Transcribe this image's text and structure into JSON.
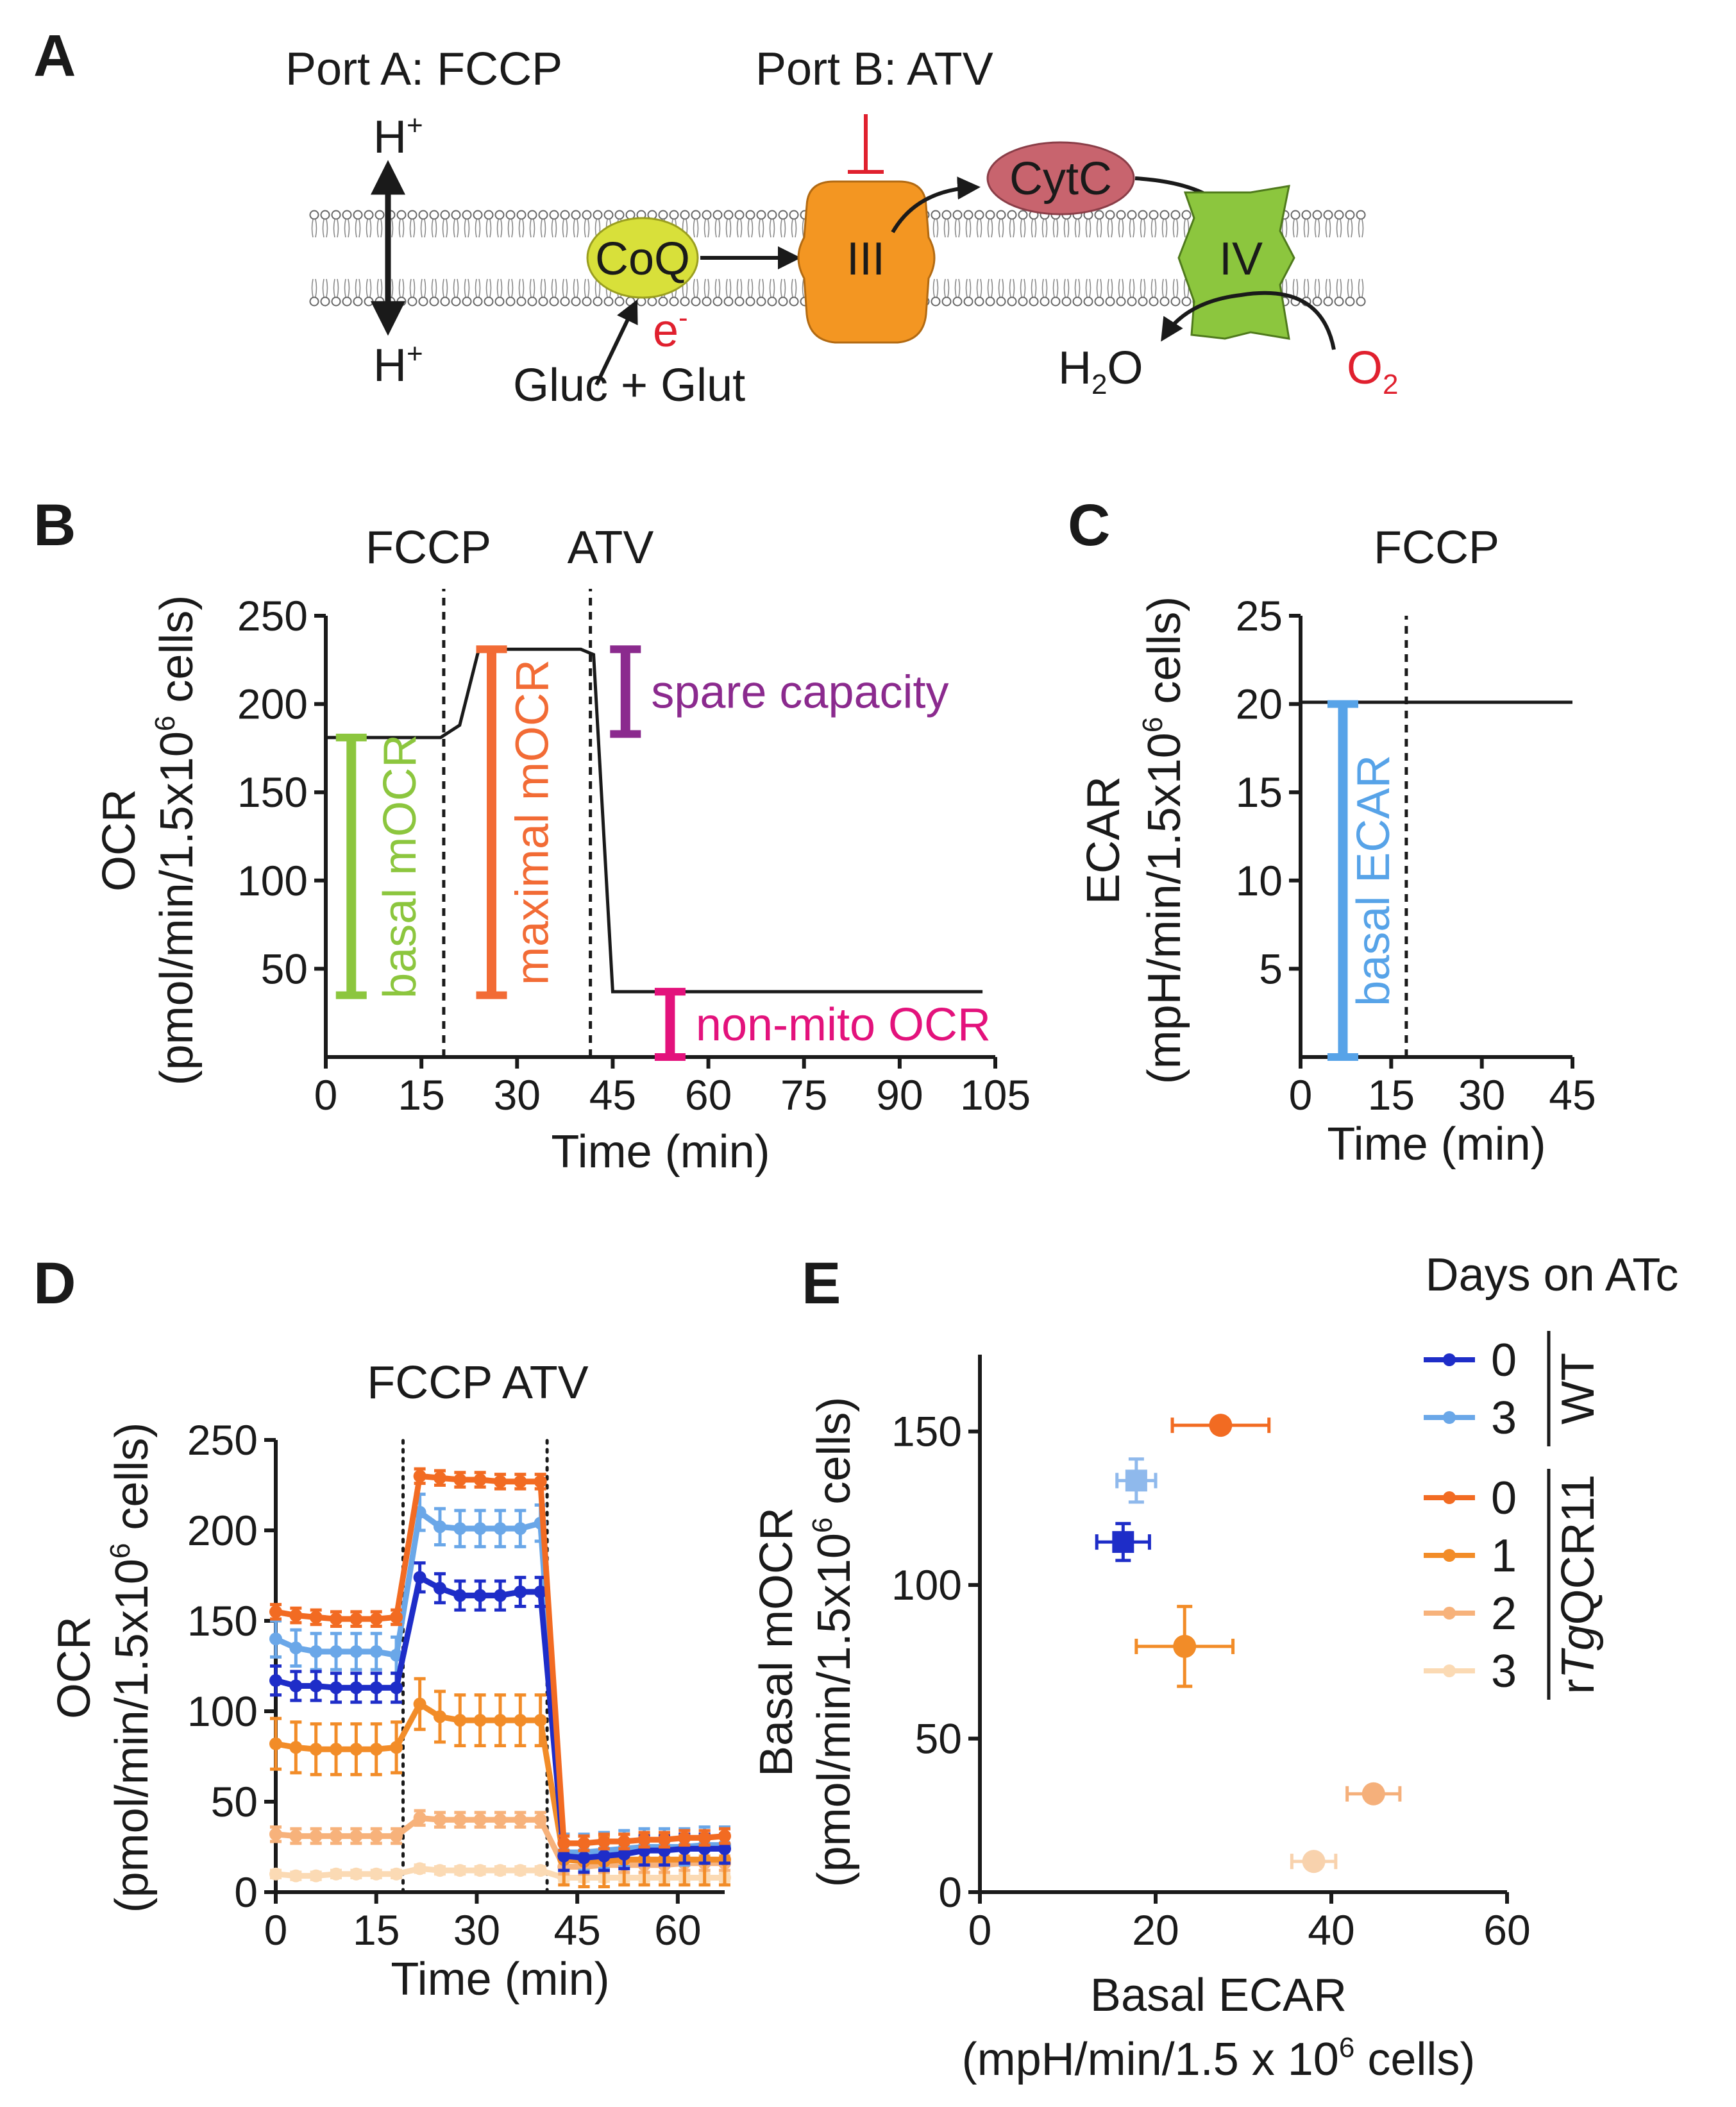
{
  "panel_labels": {
    "a": "A",
    "b": "B",
    "c": "C",
    "d": "D",
    "e": "E"
  },
  "panel_a": {
    "port_a": "Port A: FCCP",
    "port_b": "Port B: ATV",
    "h_top": "H",
    "h_bottom": "H",
    "h_sup": "+",
    "coq": "CoQ",
    "complex_iii": "III",
    "cytc": "CytC",
    "complex_iv": "IV",
    "electron": "e",
    "electron_sup": "-",
    "substrates": "Gluc + Glut",
    "water_h": "H",
    "water_sub": "2",
    "water_o": "O",
    "oxygen": "O",
    "oxygen_sub": "2",
    "colors": {
      "coq": "#d8e03a",
      "complex_iii": "#f39622",
      "cytc": "#c8646e",
      "complex_iv": "#8cc63e",
      "inhibitor": "#e0202e",
      "electron": "#e0202e"
    }
  },
  "chart_data": [
    {
      "panel": "B",
      "type": "line",
      "top_labels": [
        "FCCP",
        "ATV"
      ],
      "xlabel": "Time (min)",
      "ylabel_line1": "OCR",
      "ylabel_line2": "(pmol/min/1.5x10",
      "ylabel_sup": "6",
      "ylabel_tail": " cells)",
      "xlim": [
        0,
        105
      ],
      "ylim": [
        0,
        250
      ],
      "xticks": [
        0,
        15,
        30,
        45,
        60,
        75,
        90,
        105
      ],
      "yticks": [
        50,
        100,
        150,
        200,
        250
      ],
      "vlines": [
        18.5,
        41.5
      ],
      "line": {
        "x": [
          0,
          18,
          21,
          24,
          40,
          42,
          45,
          103
        ],
        "y": [
          181,
          181,
          188,
          231,
          231,
          228,
          37,
          37
        ]
      },
      "annotations": [
        {
          "label": "basal mOCR",
          "x": 4,
          "y_low": 35,
          "y_high": 181,
          "color": "#8cc63e",
          "orientation": "vertical"
        },
        {
          "label": "maximal mOCR",
          "x": 26,
          "y_low": 35,
          "y_high": 231,
          "color": "#f26b35",
          "orientation": "vertical"
        },
        {
          "label": "spare capacity",
          "x": 47,
          "y_low": 183,
          "y_high": 231,
          "color": "#8b2a8e",
          "orientation": "horizontal"
        },
        {
          "label": "non-mito OCR",
          "x": 54,
          "y_low": 0,
          "y_high": 37,
          "color": "#e3127c",
          "orientation": "horizontal"
        }
      ]
    },
    {
      "panel": "C",
      "type": "line",
      "top_labels": [
        "FCCP"
      ],
      "xlabel": "Time (min)",
      "ylabel_line1": "ECAR",
      "ylabel_line2": "(mpH/min/1.5x10",
      "ylabel_sup": "6",
      "ylabel_tail": " cells)",
      "xlim": [
        0,
        45
      ],
      "ylim": [
        0,
        25
      ],
      "xticks": [
        0,
        15,
        30,
        45
      ],
      "yticks": [
        5,
        10,
        15,
        20,
        25
      ],
      "vlines": [
        17.5
      ],
      "line": {
        "x": [
          0,
          45
        ],
        "y": [
          20.1,
          20.1
        ]
      },
      "annotations": [
        {
          "label": "basal ECAR",
          "x": 7,
          "y_low": 0,
          "y_high": 20,
          "color": "#57a3e8",
          "orientation": "vertical"
        }
      ]
    },
    {
      "panel": "D",
      "type": "line",
      "top_labels": [
        "FCCP ATV"
      ],
      "xlabel": "Time (min)",
      "ylabel_line1": "OCR",
      "ylabel_line2": "(pmol/min/1.5x10",
      "ylabel_sup": "6",
      "ylabel_tail": " cells)",
      "xlim": [
        0,
        67
      ],
      "ylim": [
        0,
        250
      ],
      "xticks": [
        0,
        15,
        30,
        45,
        60
      ],
      "yticks": [
        0,
        50,
        100,
        150,
        200,
        250
      ],
      "vlines": [
        19,
        40.5
      ],
      "x": [
        0,
        3,
        6,
        9,
        12,
        15,
        18,
        21.5,
        24.5,
        27.5,
        30.5,
        33.5,
        36.5,
        39.5,
        43,
        46,
        49,
        52,
        55,
        58,
        61,
        64,
        67
      ],
      "series": [
        {
          "color": "#fbdab4",
          "values": [
            10,
            9,
            9,
            10,
            10,
            10,
            10,
            13,
            12,
            12,
            12,
            12,
            12,
            12,
            8,
            8,
            8,
            8,
            8,
            8,
            8,
            8,
            8
          ],
          "err": 2
        },
        {
          "color": "#f7b27b",
          "values": [
            32,
            31,
            31,
            31,
            31,
            31,
            31,
            41,
            40,
            40,
            40,
            40,
            40,
            40,
            14,
            14,
            15,
            15,
            15,
            15,
            16,
            16,
            16
          ],
          "err": 4
        },
        {
          "color": "#f28c28",
          "values": [
            82,
            80,
            79,
            79,
            79,
            79,
            80,
            104,
            97,
            95,
            95,
            95,
            95,
            95,
            18,
            17,
            17,
            18,
            18,
            18,
            18,
            18,
            18
          ],
          "err": 14
        },
        {
          "color": "#6aa7e8",
          "values": [
            140,
            135,
            133,
            133,
            133,
            133,
            131,
            210,
            202,
            201,
            201,
            201,
            201,
            204,
            22,
            22,
            23,
            24,
            25,
            25,
            25,
            26,
            26
          ],
          "err": 10
        },
        {
          "color": "#1e2dc8",
          "values": [
            117,
            114,
            114,
            113,
            113,
            113,
            113,
            174,
            168,
            164,
            164,
            164,
            166,
            166,
            20,
            19,
            20,
            21,
            23,
            23,
            24,
            24,
            24
          ],
          "err": 8
        },
        {
          "color": "#f26b22",
          "values": [
            155,
            153,
            152,
            151,
            151,
            151,
            152,
            230,
            229,
            228,
            228,
            227,
            227,
            227,
            27,
            27,
            28,
            28,
            29,
            29,
            30,
            30,
            31
          ],
          "err": 4
        }
      ]
    },
    {
      "panel": "E",
      "type": "scatter",
      "xlabel": "Basal ECAR",
      "xlabel_line2": "(mpH/min/1.5 x 10",
      "xlabel_sup": "6",
      "xlabel_tail": " cells)",
      "ylabel_line1": "Basal mOCR",
      "ylabel_line2": "(pmol/min/1.5x10",
      "ylabel_sup": "6",
      "ylabel_tail": " cells)",
      "xlim": [
        0,
        60
      ],
      "ylim": [
        0,
        175
      ],
      "xticks": [
        0,
        20,
        40,
        60
      ],
      "yticks": [
        0,
        50,
        100,
        150
      ],
      "points": [
        {
          "group": "WT",
          "day": "0",
          "x": 16.3,
          "y": 114,
          "xerr": 3,
          "yerr": 6,
          "color": "#1e2dc8",
          "marker": "square"
        },
        {
          "group": "WT",
          "day": "3",
          "x": 17.8,
          "y": 134,
          "xerr": 2.2,
          "yerr": 7,
          "color": "#8fb9ec",
          "marker": "square"
        },
        {
          "group": "rTgQCR11",
          "day": "0",
          "x": 27.4,
          "y": 152,
          "xerr": 5.5,
          "yerr": 2,
          "color": "#f26b22",
          "marker": "circle"
        },
        {
          "group": "rTgQCR11",
          "day": "1",
          "x": 23.3,
          "y": 80,
          "xerr": 5.5,
          "yerr": 13,
          "color": "#f28c28",
          "marker": "circle"
        },
        {
          "group": "rTgQCR11",
          "day": "2",
          "x": 44.8,
          "y": 32,
          "xerr": 3,
          "yerr": 2,
          "color": "#f5b07b",
          "marker": "circle"
        },
        {
          "group": "rTgQCR11",
          "day": "3",
          "x": 38,
          "y": 10,
          "xerr": 2.5,
          "yerr": 2,
          "color": "#f8d2ad",
          "marker": "circle"
        }
      ],
      "legend": {
        "title": "Days on ATc",
        "placement": "top-right",
        "groups": [
          {
            "name": "WT",
            "name_prefix": "",
            "name_italic": "",
            "name_suffix": "WT",
            "entries": [
              {
                "label": "0",
                "color": "#1e2dc8"
              },
              {
                "label": "3",
                "color": "#6aa7e8"
              }
            ]
          },
          {
            "name": "rTgQCR11",
            "name_prefix": "r",
            "name_italic": "Tg",
            "name_suffix": "QCR11",
            "entries": [
              {
                "label": "0",
                "color": "#f26b22"
              },
              {
                "label": "1",
                "color": "#f28c28"
              },
              {
                "label": "2",
                "color": "#f7b27b"
              },
              {
                "label": "3",
                "color": "#fbdab4"
              }
            ]
          }
        ]
      }
    }
  ]
}
